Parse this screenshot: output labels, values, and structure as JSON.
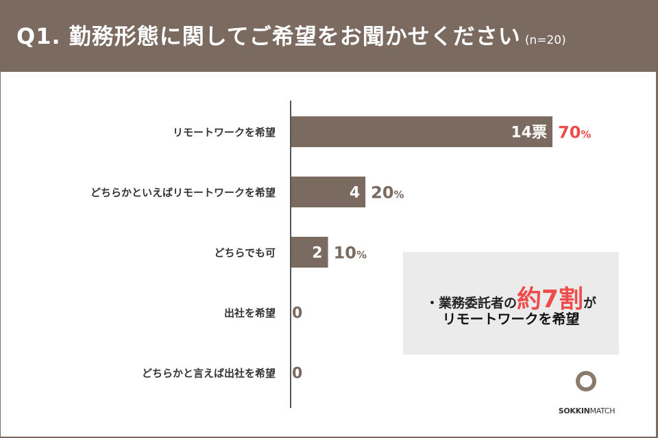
{
  "header": {
    "title": "Q1. 勤務形態に関してご希望をお聞かせください",
    "subtitle": "(n=20)"
  },
  "colors": {
    "bar": "#7a6a5f",
    "emphasis": "#ee4b4b",
    "frame": "#7a6a5f",
    "callout_bg": "#ebebeb"
  },
  "chart_data": {
    "type": "bar",
    "orientation": "horizontal",
    "categories": [
      "リモートワークを希望",
      "どちらかといえばリモートワークを希望",
      "どちらでも可",
      "出社を希望",
      "どちらかと言えば出社を希望"
    ],
    "values": [
      14,
      4,
      2,
      0,
      0
    ],
    "count_labels": [
      "14票",
      "4",
      "2",
      "0",
      "0"
    ],
    "percent_labels": [
      "70",
      "20",
      "10",
      "",
      ""
    ],
    "percent_unit": "%",
    "grid": false,
    "xlim": [
      0,
      20
    ]
  },
  "callout": {
    "prefix": "・業務委託者の",
    "emphasis": "約7割",
    "suffix": "が",
    "line2": "リモートワークを希望"
  },
  "logo": {
    "brand_sokkin": "SOKKIN",
    "brand_match": "MATCH"
  }
}
